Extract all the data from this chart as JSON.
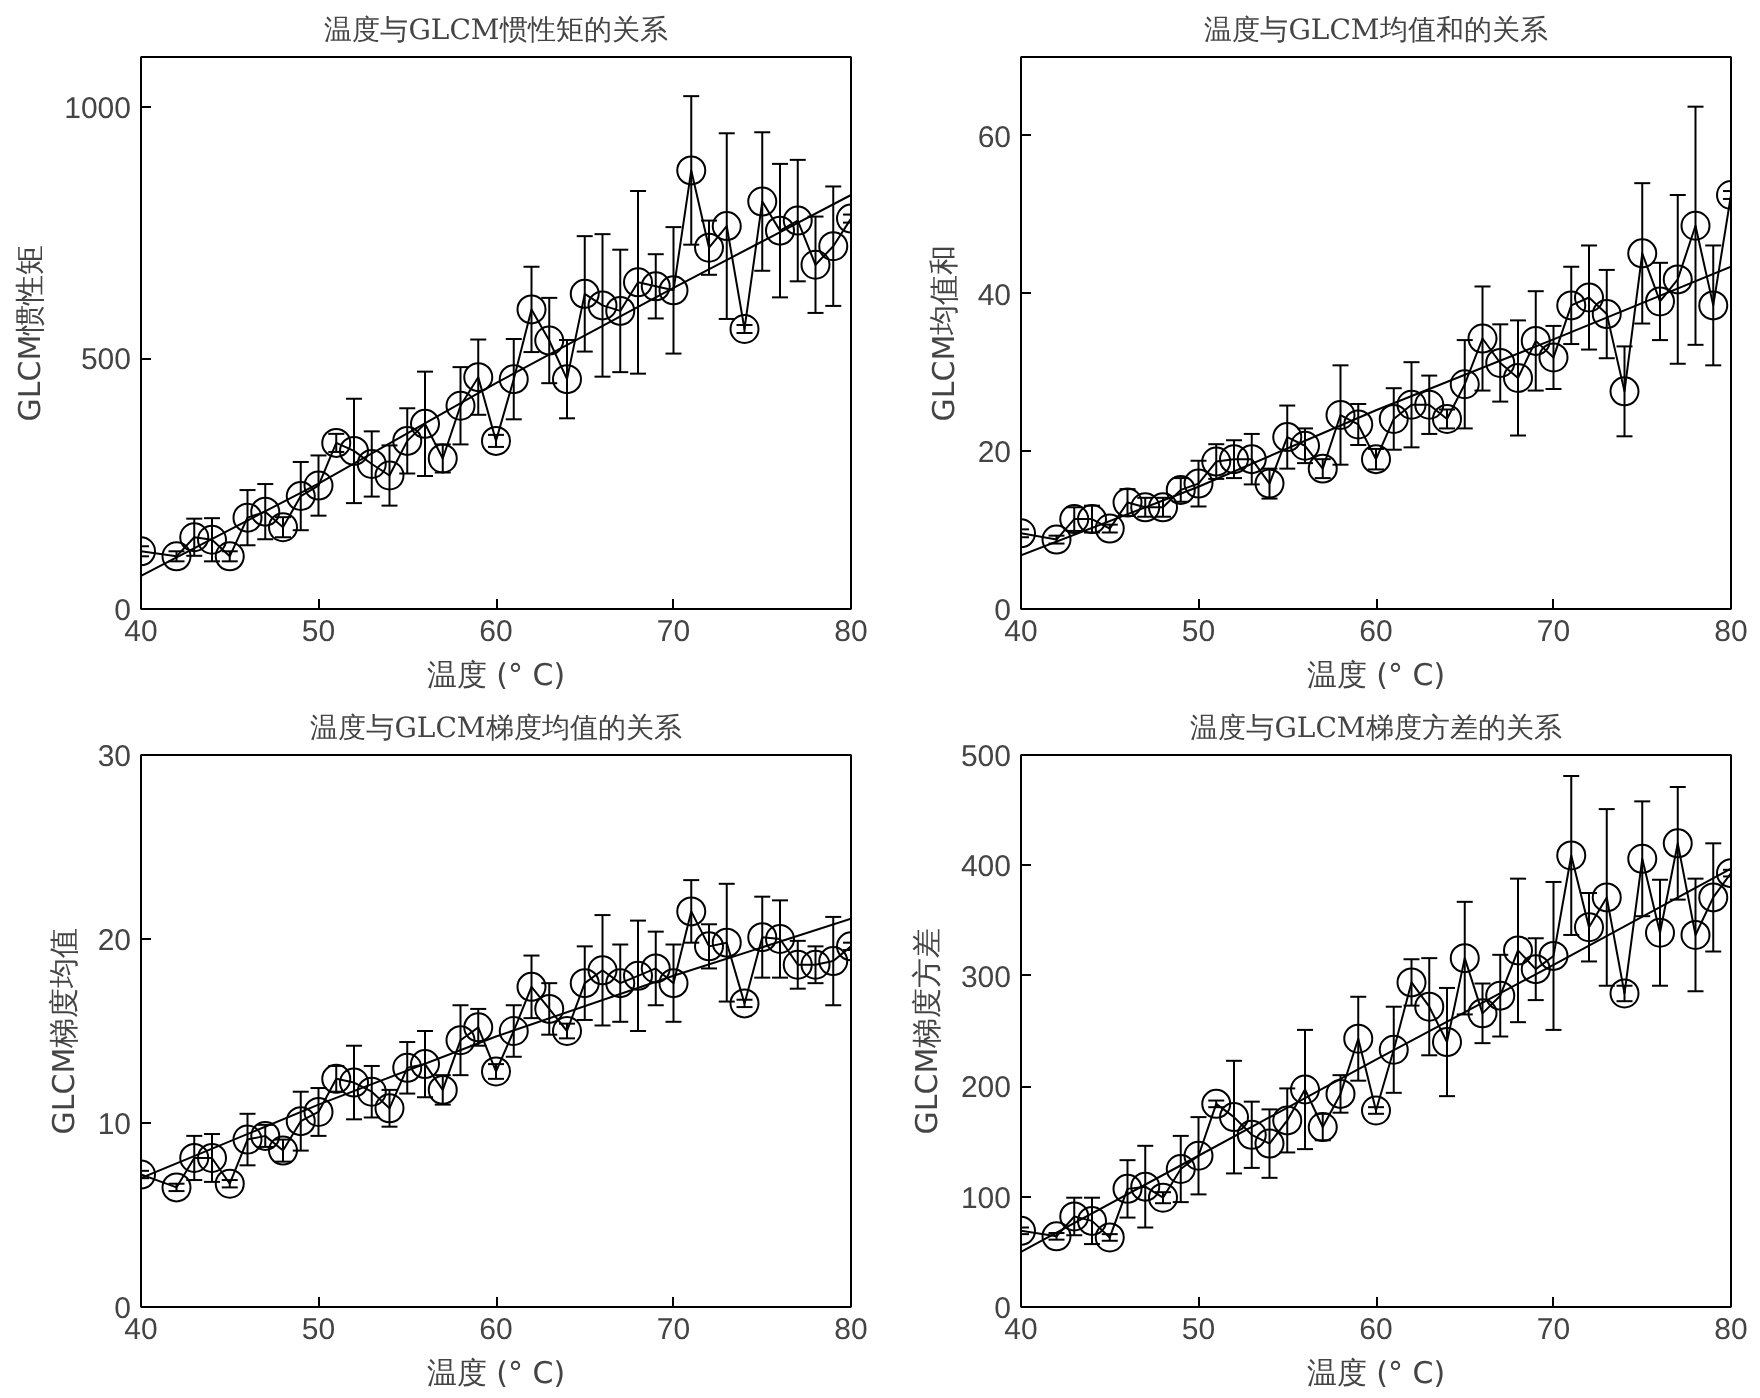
{
  "chart_data": [
    {
      "type": "line",
      "title": "温度与GLCM惯性矩的关系",
      "xlabel": "温度 (° C)",
      "ylabel": "GLCM惯性矩",
      "xlim": [
        40,
        80
      ],
      "xticks": [
        40,
        50,
        60,
        70,
        80
      ],
      "ylim": [
        0,
        1100
      ],
      "yticks": [
        0,
        500,
        1000
      ],
      "grid": false,
      "x": [
        40,
        42,
        43,
        44,
        45,
        46,
        47,
        48,
        49,
        50,
        51,
        52,
        53,
        54,
        55,
        56,
        57,
        58,
        59,
        60,
        61,
        62,
        63,
        64,
        65,
        66,
        67,
        68,
        69,
        70,
        71,
        72,
        73,
        74,
        75,
        76,
        77,
        78,
        79,
        80
      ],
      "series": [
        {
          "color": "#000000",
          "marker": "circle",
          "values": [
            115,
            105,
            143,
            138,
            105,
            182,
            194,
            163,
            225,
            246,
            331,
            315,
            289,
            266,
            335,
            369,
            300,
            405,
            462,
            335,
            458,
            597,
            535,
            458,
            628,
            605,
            594,
            651,
            643,
            635,
            874,
            720,
            763,
            558,
            812,
            754,
            774,
            686,
            723,
            778
          ],
          "errors": [
            10,
            10,
            37,
            43,
            10,
            55,
            55,
            20,
            68,
            60,
            18,
            104,
            65,
            60,
            65,
            104,
            28,
            77,
            75,
            12,
            80,
            85,
            85,
            78,
            115,
            142,
            122,
            182,
            64,
            126,
            148,
            54,
            185,
            8,
            138,
            133,
            121,
            96,
            119,
            8
          ]
        },
        {
          "color": "#000000",
          "marker": "none",
          "x": [
            40,
            50,
            60,
            70,
            80
          ],
          "values": [
            66,
            250,
            450,
            640,
            825
          ]
        }
      ]
    },
    {
      "type": "line",
      "title": "温度与GLCM均值和的关系",
      "xlabel": "温度 (° C)",
      "ylabel": "GLCM均值和",
      "xlim": [
        40,
        80
      ],
      "xticks": [
        40,
        50,
        60,
        70,
        80
      ],
      "ylim": [
        0,
        70
      ],
      "yticks": [
        0,
        20,
        40,
        60
      ],
      "grid": false,
      "x": [
        40,
        42,
        43,
        44,
        45,
        46,
        47,
        48,
        49,
        50,
        51,
        52,
        53,
        54,
        55,
        56,
        57,
        58,
        59,
        60,
        61,
        62,
        63,
        64,
        65,
        66,
        67,
        68,
        69,
        70,
        71,
        72,
        73,
        74,
        75,
        76,
        77,
        78,
        79,
        80
      ],
      "series": [
        {
          "color": "#000000",
          "marker": "circle",
          "values": [
            9.6,
            8.8,
            11.4,
            11.4,
            10.2,
            13.5,
            12.9,
            12.9,
            15.1,
            15.9,
            18.7,
            19.0,
            19.0,
            15.9,
            21.8,
            20.7,
            17.8,
            24.6,
            23.4,
            19.0,
            24.1,
            25.9,
            25.9,
            24.1,
            28.5,
            34.3,
            31.2,
            29.3,
            34.0,
            31.9,
            38.5,
            39.5,
            37.4,
            27.6,
            45.1,
            39.0,
            41.8,
            48.6,
            38.5,
            52.5
          ],
          "errors": [
            0.5,
            0.5,
            1.5,
            1.7,
            0.5,
            1.7,
            1.2,
            1.2,
            1.5,
            2.9,
            2.2,
            2.4,
            3.2,
            1.9,
            4.0,
            2.2,
            1.2,
            6.3,
            2.6,
            1.3,
            3.9,
            5.4,
            3.7,
            1.2,
            5.6,
            6.6,
            4.9,
            7.3,
            6.3,
            4.0,
            4.9,
            6.6,
            5.6,
            5.7,
            8.9,
            4.9,
            10.7,
            15.1,
            7.6,
            0.5
          ]
        },
        {
          "color": "#000000",
          "marker": "none",
          "x": [
            40,
            50,
            60,
            70,
            80
          ],
          "values": [
            6.8,
            15.5,
            25.2,
            34.2,
            43.4
          ]
        }
      ]
    },
    {
      "type": "line",
      "title": "温度与GLCM梯度均值的关系",
      "xlabel": "温度 (° C)",
      "ylabel": "GLCM梯度均值",
      "xlim": [
        40,
        80
      ],
      "xticks": [
        40,
        50,
        60,
        70,
        80
      ],
      "ylim": [
        0,
        30
      ],
      "yticks": [
        0,
        10,
        20,
        30
      ],
      "grid": false,
      "x": [
        40,
        42,
        43,
        44,
        45,
        46,
        47,
        48,
        49,
        50,
        51,
        52,
        53,
        54,
        55,
        56,
        57,
        58,
        59,
        60,
        61,
        62,
        63,
        64,
        65,
        66,
        67,
        68,
        69,
        70,
        71,
        72,
        73,
        74,
        75,
        76,
        77,
        78,
        79,
        80
      ],
      "series": [
        {
          "color": "#000000",
          "marker": "circle",
          "values": [
            7.2,
            6.5,
            8.1,
            8.1,
            6.7,
            9.1,
            9.3,
            8.5,
            10.1,
            10.6,
            12.4,
            12.2,
            11.7,
            10.8,
            13.0,
            13.2,
            11.8,
            14.5,
            15.2,
            12.8,
            15.0,
            17.4,
            16.2,
            15.0,
            17.6,
            18.3,
            17.6,
            18.0,
            18.4,
            17.6,
            21.5,
            19.6,
            19.8,
            16.5,
            20.1,
            20.0,
            18.6,
            18.6,
            18.8,
            19.6
          ],
          "errors": [
            0.2,
            0.2,
            1.2,
            1.3,
            0.2,
            1.4,
            0.6,
            0.6,
            1.6,
            1.3,
            0.7,
            2.0,
            1.4,
            1.0,
            1.4,
            1.8,
            0.8,
            1.9,
            1.0,
            0.4,
            1.4,
            1.7,
            1.4,
            0.4,
            2.0,
            3.0,
            2.1,
            3.0,
            2.0,
            2.1,
            1.7,
            1.2,
            3.2,
            0.2,
            2.2,
            2.1,
            1.3,
            1.0,
            2.4,
            0.2
          ]
        },
        {
          "color": "#000000",
          "marker": "none",
          "x": [
            40,
            50,
            60,
            70,
            80
          ],
          "values": [
            7.0,
            11.0,
            14.7,
            18.0,
            21.1
          ]
        }
      ]
    },
    {
      "type": "line",
      "title": "温度与GLCM梯度方差的关系",
      "xlabel": "温度 (° C)",
      "ylabel": "GLCM梯度方差",
      "xlim": [
        40,
        80
      ],
      "xticks": [
        40,
        50,
        60,
        70,
        80
      ],
      "ylim": [
        0,
        500
      ],
      "yticks": [
        0,
        100,
        200,
        300,
        400,
        500
      ],
      "grid": false,
      "x": [
        40,
        42,
        43,
        44,
        45,
        46,
        47,
        48,
        49,
        50,
        51,
        52,
        53,
        54,
        55,
        56,
        57,
        58,
        59,
        60,
        61,
        62,
        63,
        64,
        65,
        66,
        67,
        68,
        69,
        70,
        71,
        72,
        73,
        74,
        75,
        76,
        77,
        78,
        79,
        80
      ],
      "series": [
        {
          "color": "#000000",
          "marker": "circle",
          "values": [
            69,
            64,
            82,
            78,
            63,
            107,
            109,
            99,
            125,
            137,
            184,
            172,
            156,
            148,
            169,
            197,
            163,
            193,
            243,
            178,
            233,
            294,
            272,
            240,
            316,
            266,
            282,
            323,
            306,
            318,
            409,
            344,
            371,
            284,
            406,
            339,
            420,
            337,
            371,
            393
          ],
          "errors": [
            3,
            3,
            17,
            21,
            3,
            26,
            37,
            5,
            30,
            35,
            3,
            51,
            30,
            31,
            29,
            54,
            12,
            17,
            38,
            3,
            39,
            21,
            44,
            49,
            51,
            27,
            37,
            65,
            28,
            67,
            72,
            31,
            80,
            7,
            52,
            48,
            51,
            51,
            49,
            3
          ]
        },
        {
          "color": "#000000",
          "marker": "none",
          "x": [
            40,
            50,
            60,
            70,
            80
          ],
          "values": [
            50,
            137,
            224,
            310,
            397
          ]
        }
      ]
    }
  ]
}
